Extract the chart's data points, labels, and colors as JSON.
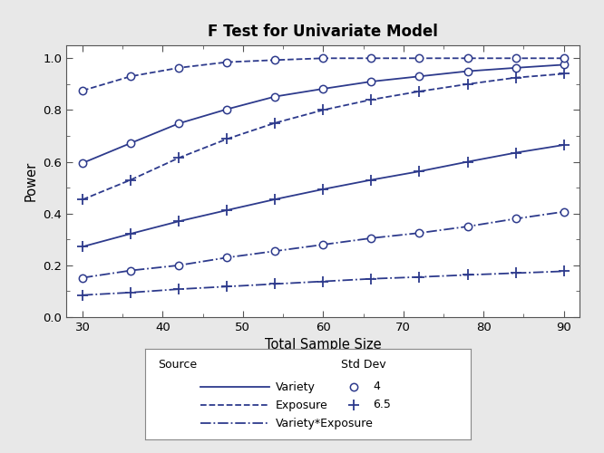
{
  "title": "F Test for Univariate Model",
  "xlabel": "Total Sample Size",
  "ylabel": "Power",
  "x": [
    30,
    36,
    42,
    48,
    54,
    60,
    66,
    72,
    78,
    84,
    90
  ],
  "xlim": [
    28,
    92
  ],
  "ylim": [
    0.0,
    1.05
  ],
  "xticks": [
    30,
    40,
    50,
    60,
    70,
    80,
    90
  ],
  "yticks": [
    0.0,
    0.2,
    0.4,
    0.6,
    0.8,
    1.0
  ],
  "color": "#2d3a8c",
  "curves": {
    "variety_sd4": [
      0.595,
      0.672,
      0.748,
      0.803,
      0.852,
      0.882,
      0.91,
      0.93,
      0.95,
      0.963,
      0.975
    ],
    "variety_sd65": [
      0.272,
      0.322,
      0.37,
      0.413,
      0.455,
      0.494,
      0.53,
      0.563,
      0.6,
      0.635,
      0.665
    ],
    "exposure_sd4": [
      0.875,
      0.93,
      0.963,
      0.985,
      0.993,
      1.0,
      1.0,
      1.0,
      1.0,
      1.0,
      1.0
    ],
    "exposure_sd65": [
      0.454,
      0.53,
      0.615,
      0.688,
      0.75,
      0.8,
      0.84,
      0.872,
      0.9,
      0.925,
      0.94
    ],
    "interaction_sd4": [
      0.152,
      0.18,
      0.2,
      0.23,
      0.255,
      0.28,
      0.305,
      0.325,
      0.35,
      0.38,
      0.407
    ],
    "interaction_sd65": [
      0.085,
      0.095,
      0.108,
      0.118,
      0.128,
      0.138,
      0.148,
      0.155,
      0.163,
      0.17,
      0.177
    ]
  },
  "background": "#e8e8e8",
  "plot_bg": "#ffffff",
  "lw": 1.3,
  "ms_circle": 6,
  "ms_plus": 8
}
